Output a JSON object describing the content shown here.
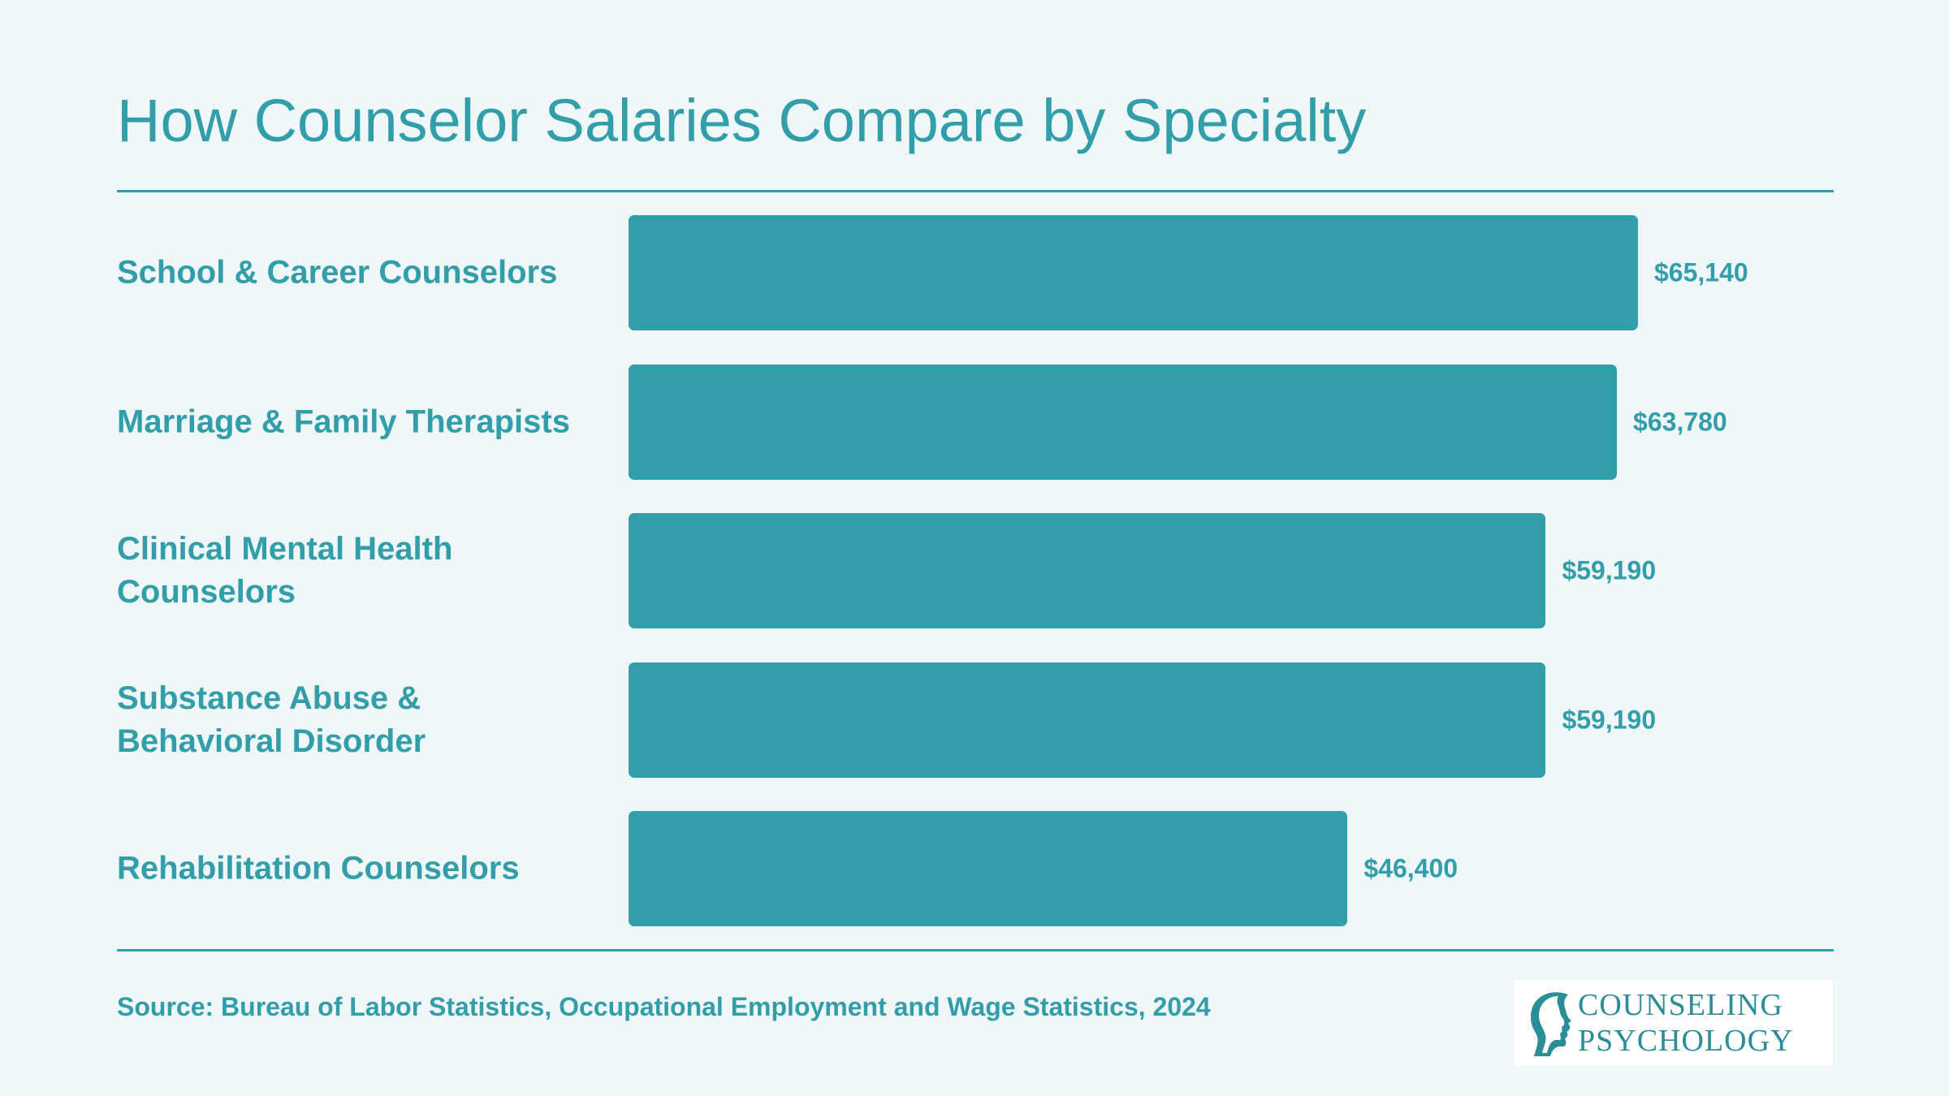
{
  "title": "How Counselor Salaries Compare by Specialty",
  "source": "Source: Bureau of Labor Statistics, Occupational Employment and Wage Statistics, 2024",
  "logo": {
    "line1": "COUNSELING",
    "line2": "PSYCHOLOGY"
  },
  "colors": {
    "background": "#eff7f8",
    "accent": "#319ea9"
  },
  "chart_data": {
    "type": "bar",
    "orientation": "horizontal",
    "categories": [
      "School & Career Counselors",
      "Marriage & Family Therapists",
      "Clinical Mental Health Counselors",
      "Substance Abuse & Behavioral Disorder",
      "Rehabilitation Counselors"
    ],
    "values": [
      65140,
      63780,
      59190,
      59190,
      46400
    ],
    "value_labels": [
      "$65,140",
      "$63,780",
      "$59,190",
      "$59,190",
      "$46,400"
    ],
    "title": "How Counselor Salaries Compare by Specialty",
    "xlabel": "",
    "ylabel": "",
    "grid": false,
    "legend": "none"
  }
}
